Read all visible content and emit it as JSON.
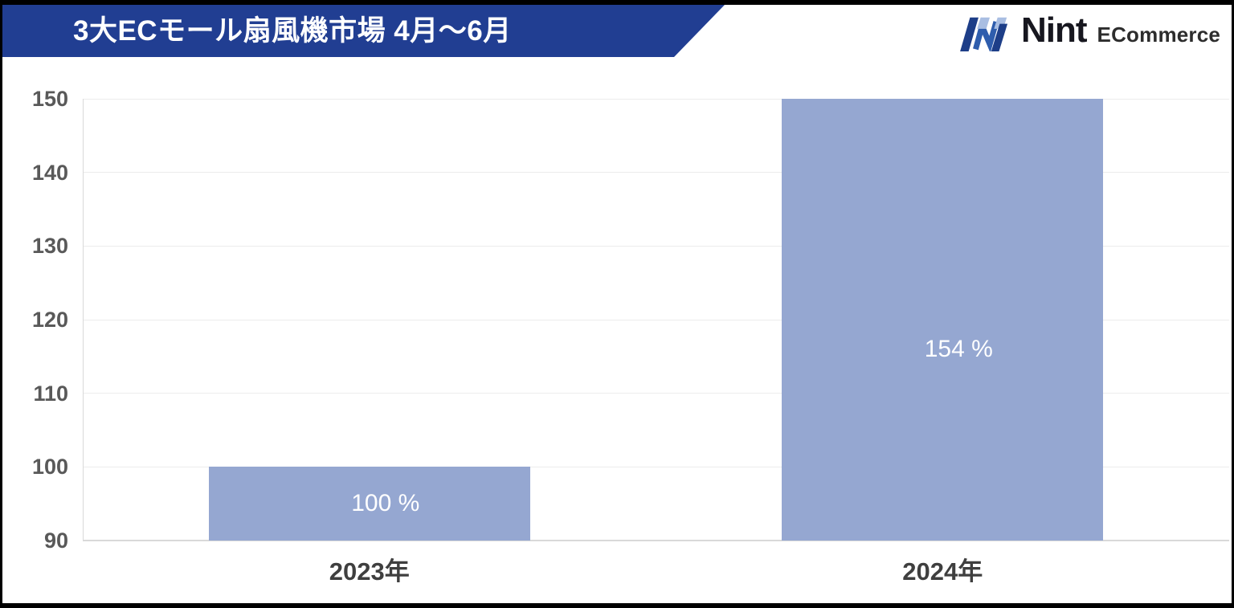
{
  "header": {
    "title": "3大ECモール扇風機市場 4月～6月"
  },
  "logo": {
    "brand": "Nint",
    "suffix": "ECommerce",
    "mark_colors": {
      "dark": "#1D3E88",
      "mid": "#2E5DAD",
      "light": "#A9BEE2"
    }
  },
  "chart_data": {
    "type": "bar",
    "title": "3大ECモール扇風機市場 4月～6月",
    "categories": [
      "2023年",
      "2024年"
    ],
    "values": [
      100,
      154
    ],
    "bar_labels": [
      "100 %",
      "154 %"
    ],
    "xlabel": "",
    "ylabel": "",
    "ylim": [
      90,
      150
    ],
    "yticks": [
      90,
      100,
      110,
      120,
      130,
      140,
      150
    ],
    "bars_clipped_at_ymax": true,
    "grid": true,
    "legend": false,
    "bar_color": "#95A7D1",
    "bar_label_color": "#FFFFFF"
  },
  "colors": {
    "banner_bg": "#213E92",
    "tick_label": "#595959",
    "category_label": "#3F3F3F",
    "gridline": "#ECECEC",
    "axis_line": "#D9D9D9"
  }
}
